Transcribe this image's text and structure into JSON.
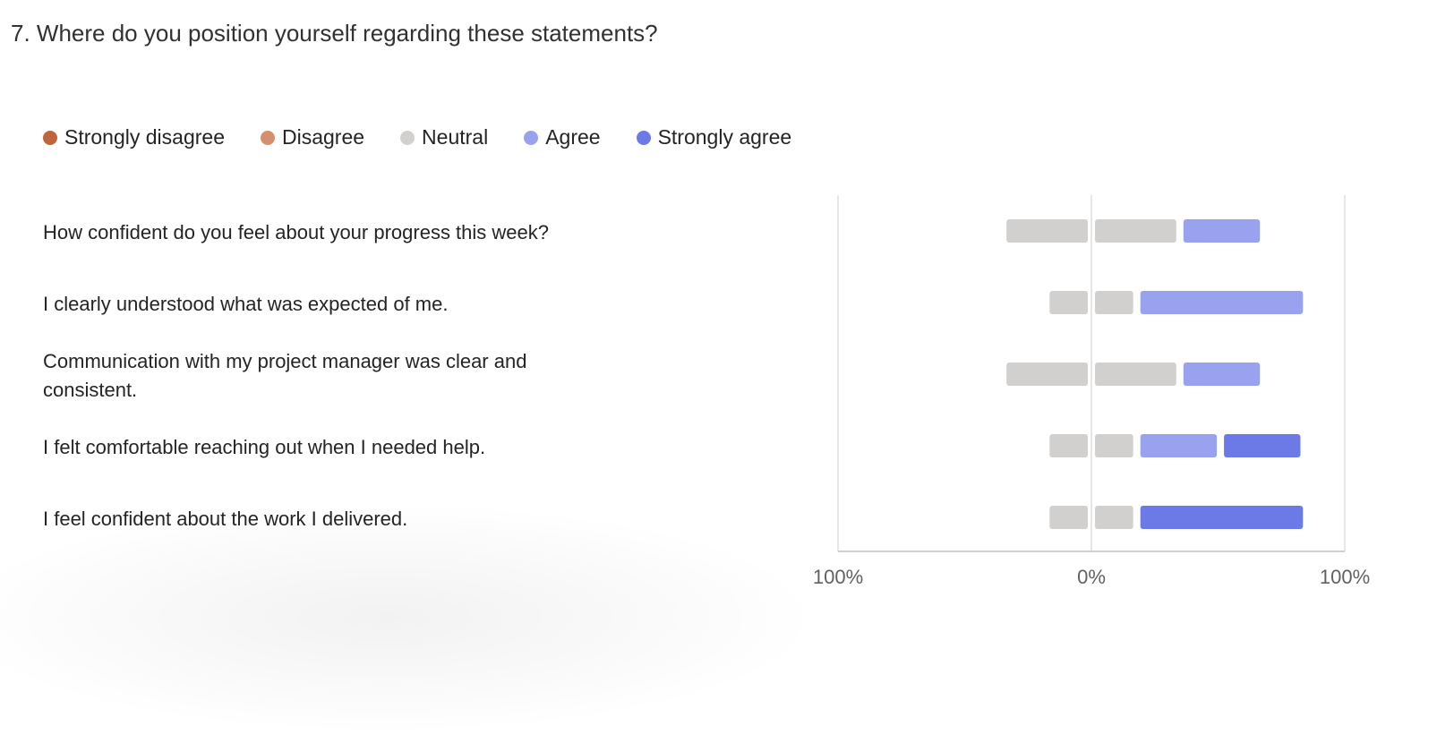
{
  "question": {
    "title": "7. Where do you position yourself regarding these statements?"
  },
  "legend": [
    {
      "label": "Strongly disagree",
      "color": "#c0643a"
    },
    {
      "label": "Disagree",
      "color": "#d4906a"
    },
    {
      "label": "Neutral",
      "color": "#d2d0ce"
    },
    {
      "label": "Agree",
      "color": "#98a2ee"
    },
    {
      "label": "Strongly agree",
      "color": "#6b7ae6"
    }
  ],
  "chart_data": {
    "type": "bar",
    "orientation": "horizontal",
    "stacking": "diverging",
    "categories": [
      "How confident do you feel about your progress this week?",
      "I clearly understood what was expected of me.",
      "Communication with my project manager was clear and consistent.",
      "I felt comfortable reaching out when I needed help.",
      "I feel confident about the work I delivered."
    ],
    "series": [
      {
        "name": "Strongly disagree",
        "values": [
          0,
          0,
          0,
          0,
          0
        ]
      },
      {
        "name": "Disagree",
        "values": [
          0,
          0,
          0,
          0,
          0
        ]
      },
      {
        "name": "Neutral",
        "values": [
          67,
          33,
          67,
          33,
          33
        ]
      },
      {
        "name": "Agree",
        "values": [
          33,
          67,
          33,
          33,
          0
        ]
      },
      {
        "name": "Strongly agree",
        "values": [
          0,
          0,
          0,
          33,
          67
        ]
      }
    ],
    "xlim": [
      -100,
      100
    ],
    "x_tick_labels": [
      "100%",
      "0%",
      "100%"
    ],
    "legend_position": "top-left",
    "grid": false
  }
}
